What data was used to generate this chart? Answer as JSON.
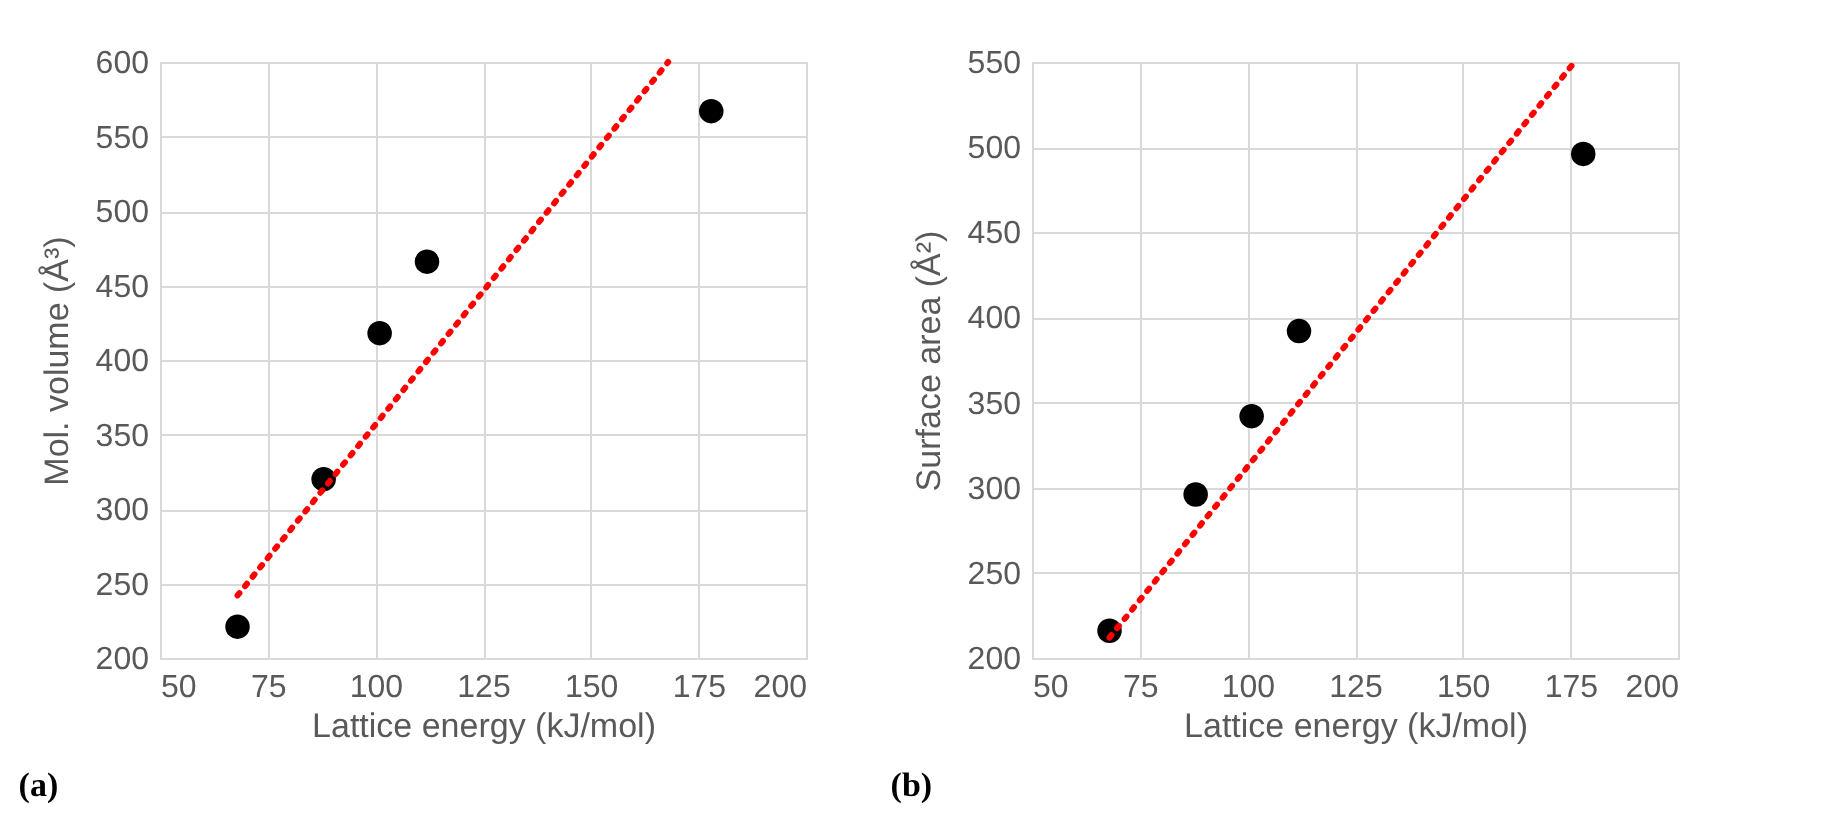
{
  "chart_data": [
    {
      "type": "scatter",
      "xlabel": "Lattice energy (kJ/mol)",
      "ylabel": "Mol. volume (Å³)",
      "annotations": [
        "(a)"
      ],
      "xlim": [
        50,
        200
      ],
      "xticks": [
        50,
        75,
        100,
        125,
        150,
        175,
        200
      ],
      "ylim": [
        200,
        600
      ],
      "yticks": [
        200,
        250,
        300,
        350,
        400,
        450,
        500,
        550,
        600
      ],
      "grid": true,
      "marker": "circle",
      "series": [
        {
          "type": "scatter",
          "color": "#000000",
          "x": [
            68,
            88,
            101,
            112,
            178
          ],
          "values": [
            221,
            320,
            418,
            466,
            567
          ]
        },
        {
          "type": "line",
          "color": "#ff0000",
          "line_style": "dotted",
          "marker": "none",
          "x": [
            68,
            168
          ],
          "values": [
            242,
            600
          ]
        }
      ]
    },
    {
      "type": "scatter",
      "xlabel": "Lattice energy (kJ/mol)",
      "ylabel": "Surface area (Å²)",
      "annotations": [
        "(b)"
      ],
      "xlim": [
        50,
        200
      ],
      "xticks": [
        50,
        75,
        100,
        125,
        150,
        175,
        200
      ],
      "ylim": [
        200,
        550
      ],
      "yticks": [
        200,
        250,
        300,
        350,
        400,
        450,
        500,
        550
      ],
      "grid": true,
      "marker": "circle",
      "series": [
        {
          "type": "scatter",
          "color": "#000000",
          "x": [
            68,
            88,
            101,
            112,
            178
          ],
          "values": [
            216,
            296,
            342,
            392,
            496
          ]
        },
        {
          "type": "line",
          "color": "#ff0000",
          "line_style": "dotted",
          "marker": "none",
          "x": [
            68,
            176
          ],
          "values": [
            212,
            550
          ]
        }
      ]
    }
  ]
}
